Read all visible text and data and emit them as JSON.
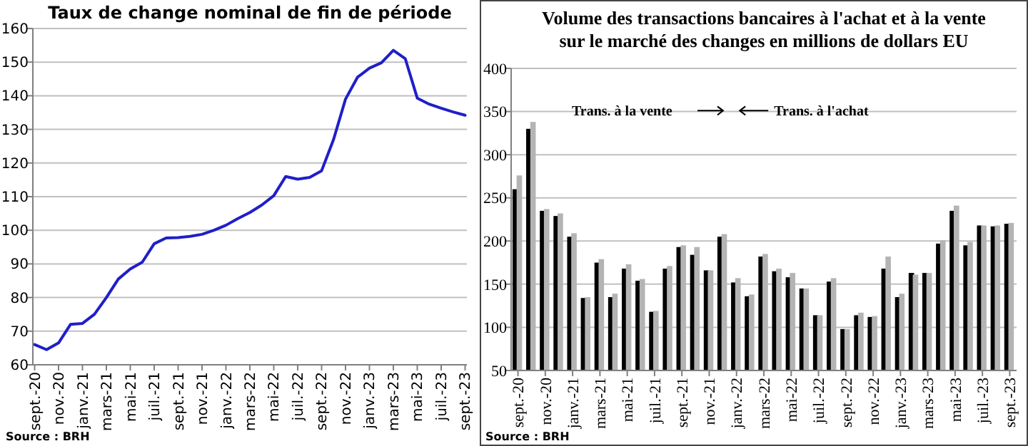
{
  "chart_data": [
    {
      "type": "line",
      "title": "Taux de change nominal de fin de période",
      "categories": [
        "sept.-20",
        null,
        "nov.-20",
        null,
        "janv.-21",
        null,
        "mars-21",
        null,
        "mai-21",
        null,
        "juil.-21",
        null,
        "sept.-21",
        null,
        "nov.-21",
        null,
        "janv.-22",
        null,
        "mars-22",
        null,
        "mai-22",
        null,
        "juil.-22",
        null,
        "sept.-22",
        null,
        "nov.-22",
        null,
        "janv.-23",
        null,
        "mars-23",
        null,
        "mai-23",
        null,
        "juil.-23",
        null,
        "sept.-23"
      ],
      "series": [
        {
          "color": "#1f1fc8",
          "values": [
            66,
            64.5,
            66.5,
            72,
            72.3,
            75,
            80,
            85.5,
            88.5,
            90.5,
            96,
            97.7,
            97.8,
            98.2,
            98.8,
            100,
            101.5,
            103.5,
            105.3,
            107.5,
            110.3,
            116,
            115.2,
            115.7,
            117.7,
            127,
            139,
            145.5,
            148.2,
            149.8,
            153.5,
            151,
            139.3,
            137.5,
            136.3,
            135.2,
            134.2
          ]
        }
      ],
      "ylim": [
        60,
        160
      ],
      "yticks": [
        60,
        70,
        80,
        90,
        100,
        110,
        120,
        130,
        140,
        150,
        160
      ],
      "grid": "y",
      "marker": "none",
      "line_style": "solid",
      "annotations": [
        "Source : BRH"
      ]
    },
    {
      "type": "bar",
      "title": "Volume des transactions bancaires à l'achat et à la vente\nsur le marché des changes  en millions de dollars EU",
      "categories": [
        "sept.-20",
        null,
        "nov.-20",
        null,
        "janv.-21",
        null,
        "mars-21",
        null,
        "mai-21",
        null,
        "juil.-21",
        null,
        "sept.-21",
        null,
        "nov.-21",
        null,
        "janv.-22",
        null,
        "mars-22",
        null,
        "mai-22",
        null,
        "juil.-22",
        null,
        "sept.-22",
        null,
        "nov.-22",
        null,
        "janv.-23",
        null,
        "mars-23",
        null,
        "mai-23",
        null,
        "juil.-23",
        null,
        "sept.-23"
      ],
      "series": [
        {
          "color": "#000000",
          "values": [
            260,
            330,
            235,
            229,
            205,
            134,
            175,
            135,
            168,
            154,
            118,
            168,
            193,
            184,
            166,
            205,
            152,
            136,
            182,
            165,
            158,
            145,
            114,
            153,
            98,
            114,
            112,
            168,
            135,
            163,
            163,
            197,
            235,
            195,
            218,
            217,
            220
          ]
        },
        {
          "color": "#b4b4b4",
          "values": [
            276,
            338,
            237,
            232,
            209,
            135,
            179,
            139,
            173,
            156,
            119,
            171,
            195,
            193,
            166,
            208,
            157,
            138,
            185,
            168,
            163,
            145,
            114,
            157,
            98,
            117,
            113,
            182,
            139,
            161,
            163,
            201,
            241,
            199,
            218,
            218,
            221
          ]
        }
      ],
      "ylim": [
        50,
        400
      ],
      "yticks": [
        50,
        100,
        150,
        200,
        250,
        300,
        350,
        400
      ],
      "grid": "y",
      "annotations": [
        "Trans. à la vente",
        "Trans. à l'achat",
        "Source : BRH"
      ]
    }
  ]
}
